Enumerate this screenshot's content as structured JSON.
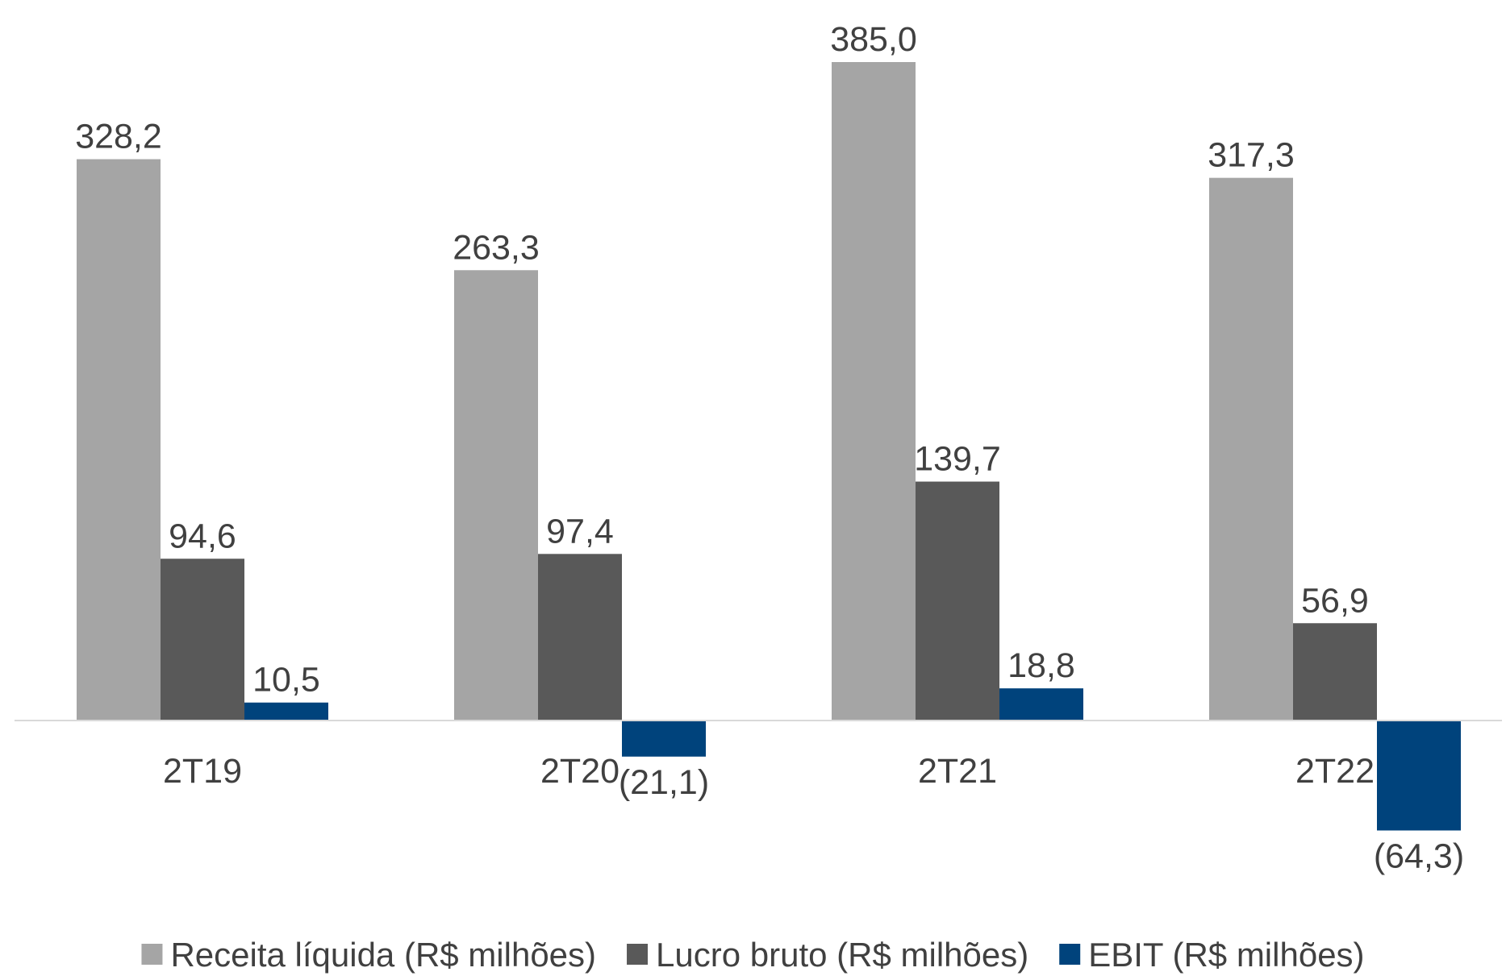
{
  "chart_data": {
    "type": "bar",
    "categories": [
      "2T19",
      "2T20",
      "2T21",
      "2T22"
    ],
    "series": [
      {
        "name": "Receita líquida (R$ milhões)",
        "color": "#a5a5a5",
        "values": [
          328.2,
          263.3,
          385.0,
          317.3
        ],
        "value_labels": [
          "328,2",
          "263,3",
          "385,0",
          "317,3"
        ]
      },
      {
        "name": "Lucro bruto (R$ milhões)",
        "color": "#595959",
        "values": [
          94.6,
          97.4,
          139.7,
          56.9
        ],
        "value_labels": [
          "94,6",
          "97,4",
          "139,7",
          "56,9"
        ]
      },
      {
        "name": "EBIT (R$ milhões)",
        "color": "#00437c",
        "values": [
          10.5,
          -21.1,
          18.8,
          -64.3
        ],
        "value_labels": [
          "10,5",
          "(21,1)",
          "18,8",
          "(64,3)"
        ]
      }
    ],
    "legend": "bottom"
  }
}
